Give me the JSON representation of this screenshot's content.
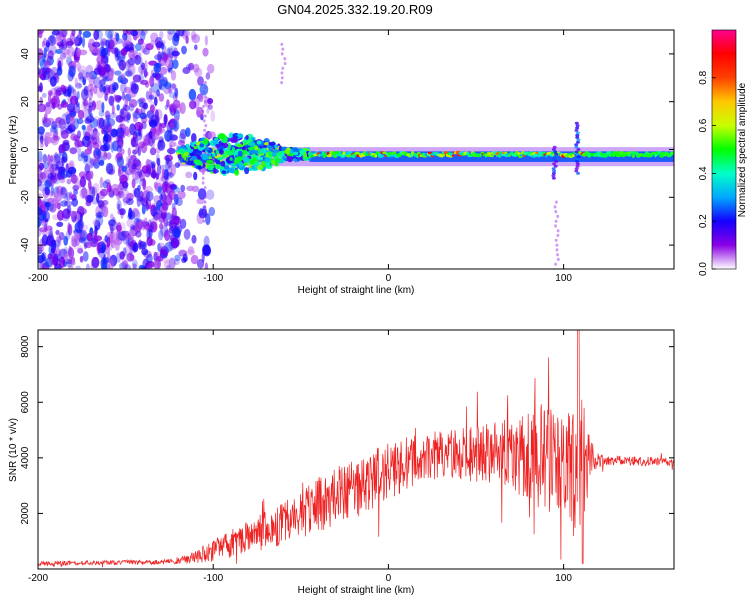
{
  "page_title": "GN04.2025.332.19.20.R09",
  "chart_data": [
    {
      "type": "heatmap",
      "title": "GN04.2025.332.19.20.R09",
      "xlabel": "Height of straight line (km)",
      "ylabel": "Frequency (Hz)",
      "xlim": [
        -200,
        163
      ],
      "ylim": [
        -50,
        50
      ],
      "x_ticks": [
        -200,
        -100,
        0,
        100
      ],
      "x_tick_labels": [
        "-200",
        "-100",
        "0",
        "100"
      ],
      "y_ticks": [
        -40,
        -20,
        0,
        20,
        40
      ],
      "y_tick_labels": [
        "-40",
        "-20",
        "0",
        "20",
        "40"
      ],
      "colorbar": {
        "label": "Normalized spectral amplitude",
        "range": [
          0,
          1
        ],
        "ticks": [
          0.0,
          0.2,
          0.4,
          0.6,
          0.8
        ],
        "tick_labels": [
          "0.0",
          "0.2",
          "0.4",
          "0.6",
          "0.8"
        ],
        "colormap": [
          "#ffffff",
          "#8a00e6",
          "#1400ff",
          "#00a8ff",
          "#00ffc8",
          "#00ff00",
          "#c8ff00",
          "#ffc800",
          "#ff4000",
          "#ff0000",
          "#ff0090"
        ]
      },
      "regions": {
        "noise_scatter_x": [
          -200,
          -120
        ],
        "broadband_blob_x": [
          -120,
          -45
        ],
        "narrow_band_x": [
          -45,
          163
        ],
        "band_center_hz": -3
      }
    },
    {
      "type": "line",
      "xlabel": "Height of straight line (km)",
      "ylabel": "SNR (10 * v/v)",
      "xlim": [
        -200,
        163
      ],
      "ylim": [
        0,
        8600
      ],
      "x_ticks": [
        -200,
        -100,
        0,
        100
      ],
      "x_tick_labels": [
        "-200",
        "-100",
        "0",
        "100"
      ],
      "y_ticks": [
        2000,
        4000,
        6000,
        8000
      ],
      "y_tick_labels": [
        "2000",
        "4000",
        "6000",
        "8000"
      ],
      "color": "#ee2222",
      "envelope": {
        "x": [
          -200,
          -130,
          -120,
          -110,
          -100,
          -90,
          -80,
          -70,
          -60,
          -50,
          -40,
          -30,
          -20,
          -10,
          0,
          10,
          20,
          30,
          40,
          50,
          60,
          70,
          80,
          90,
          100,
          105,
          108,
          110,
          112,
          115,
          120,
          130,
          140,
          150,
          163
        ],
        "baseline": [
          200,
          250,
          300,
          450,
          650,
          900,
          1150,
          1400,
          1650,
          1950,
          2300,
          2600,
          2900,
          3200,
          3500,
          3800,
          4000,
          4100,
          4150,
          4150,
          4150,
          4100,
          4000,
          3900,
          3800,
          3700,
          3600,
          3500,
          3700,
          3900,
          3900,
          3900,
          3880,
          3870,
          3850
        ],
        "amplitude": [
          80,
          80,
          120,
          250,
          400,
          500,
          600,
          700,
          800,
          900,
          1000,
          1050,
          1100,
          1100,
          1050,
          1000,
          900,
          900,
          950,
          1000,
          1150,
          1350,
          1700,
          1900,
          2000,
          2100,
          2400,
          2800,
          2000,
          800,
          250,
          180,
          170,
          160,
          150
        ]
      }
    }
  ]
}
